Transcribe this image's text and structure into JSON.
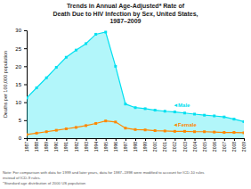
{
  "chart_data": {
    "type": "line",
    "title": "Trends in Annual Age-Adjusted* Rate of\nDeath Due to HIV Infection by Sex, United States,\n1987–2009",
    "y_label": "Deaths per 100,000 population",
    "x": [
      1987,
      1988,
      1989,
      1990,
      1991,
      1992,
      1993,
      1994,
      1995,
      1996,
      1997,
      1998,
      1999,
      2000,
      2001,
      2002,
      2003,
      2004,
      2005,
      2006,
      2007,
      2008,
      2009
    ],
    "xlim": [
      1987,
      2009
    ],
    "xticks": [
      1987,
      1988,
      1989,
      1990,
      1991,
      1992,
      1993,
      1994,
      1995,
      1996,
      1997,
      1998,
      1999,
      2000,
      2001,
      2002,
      2003,
      2004,
      2005,
      2006,
      2007,
      2008,
      2009
    ],
    "ylim": [
      0,
      30
    ],
    "yticks": [
      0,
      5,
      10,
      15,
      20,
      25,
      30
    ],
    "grid": false,
    "series": [
      {
        "name": "Male",
        "type": "area",
        "color": "#00e0f0",
        "marker": "square",
        "values": [
          11.2,
          14.0,
          16.8,
          19.7,
          22.5,
          24.5,
          26.3,
          28.9,
          29.5,
          20.0,
          9.5,
          8.5,
          8.2,
          7.8,
          7.5,
          7.3,
          7.0,
          6.7,
          6.4,
          6.2,
          5.9,
          5.3,
          4.6
        ]
      },
      {
        "name": "Female",
        "type": "line",
        "color": "#ff8800",
        "marker": "square",
        "values": [
          1.0,
          1.4,
          1.8,
          2.2,
          2.6,
          3.0,
          3.5,
          4.1,
          4.8,
          4.5,
          2.8,
          2.4,
          2.3,
          2.1,
          2.0,
          1.9,
          1.9,
          1.8,
          1.8,
          1.7,
          1.6,
          1.6,
          1.5
        ]
      }
    ],
    "annotations": [
      {
        "text": "◄Male",
        "x": 2001.8,
        "y": 8.8,
        "color": "#00e0f0"
      },
      {
        "text": "◄Female",
        "x": 2001.8,
        "y": 3.2,
        "color": "#ff8800"
      }
    ],
    "note": "Note: For comparison with data for 1999 and later years, data for 1987–1998 were modified to account for ICD-10 rules\ninstead of ICD-9 rules.\n*Standard age distribution of 2000 US population"
  }
}
